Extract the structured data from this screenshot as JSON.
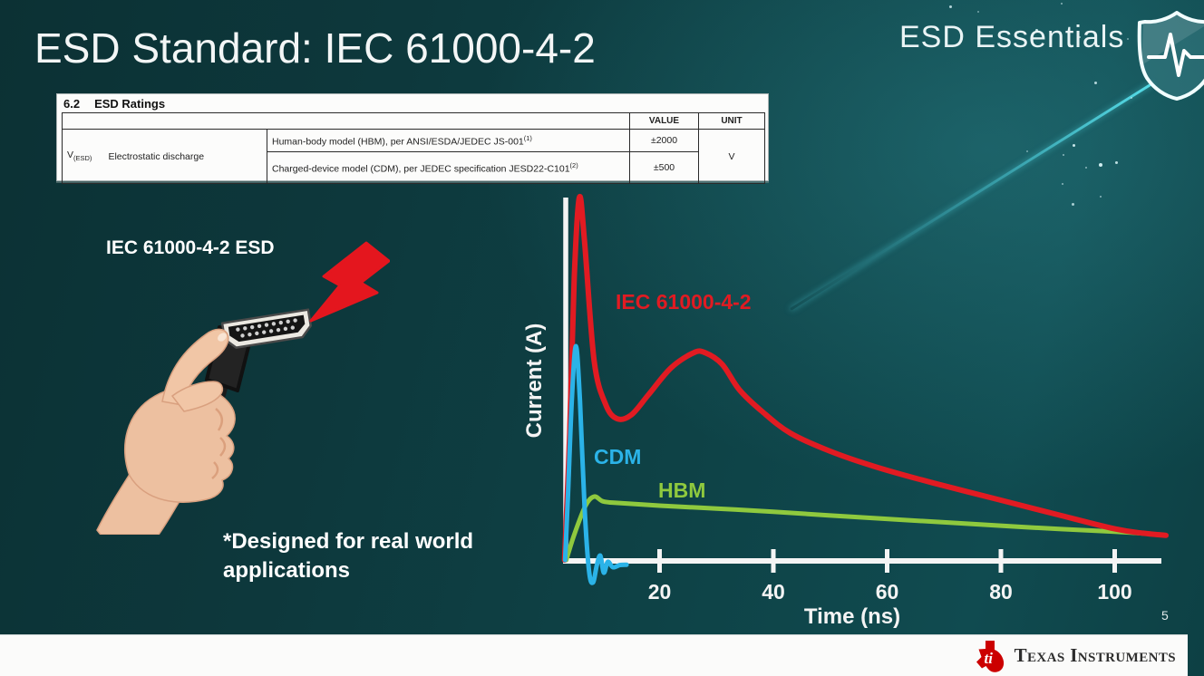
{
  "slide": {
    "title": "ESD Standard: IEC 61000-4-2",
    "brand": "ESD Essentials",
    "page_number": "5"
  },
  "ratings_table": {
    "section_number": "6.2",
    "section_title": "ESD Ratings",
    "headers": {
      "value": "VALUE",
      "unit": "UNIT"
    },
    "symbol": {
      "base": "V",
      "sub": "(ESD)"
    },
    "parameter": "Electrostatic discharge",
    "rows": [
      {
        "description": "Human-body model (HBM), per ANSI/ESDA/JEDEC JS-001",
        "footnote": "(1)",
        "value": "±2000"
      },
      {
        "description": "Charged-device model (CDM), per JEDEC specification JESD22-C101",
        "footnote": "(2)",
        "value": "±500"
      }
    ],
    "unit": "V"
  },
  "illustration": {
    "label": "IEC 61000-4-2 ESD",
    "note_line1": "*Designed for real world",
    "note_line2": "applications"
  },
  "footer": {
    "logo_text": "Texas Instruments"
  },
  "chart_data": {
    "type": "line",
    "title": "",
    "xlabel": "Time (ns)",
    "ylabel": "Current (A)",
    "x_ticks": [
      20,
      40,
      60,
      80,
      100
    ],
    "xlim": [
      0,
      110
    ],
    "ylim_normalized": [
      -0.08,
      1.05
    ],
    "grid": false,
    "legend": "inline-labels",
    "series": [
      {
        "name": "IEC 61000-4-2",
        "color": "#e11b22",
        "points": [
          [
            3.3,
            0
          ],
          [
            4.2,
            0.35
          ],
          [
            5,
            0.78
          ],
          [
            5.9,
            1.0
          ],
          [
            6.8,
            0.88
          ],
          [
            8.5,
            0.55
          ],
          [
            10.5,
            0.43
          ],
          [
            12.5,
            0.39
          ],
          [
            15,
            0.4
          ],
          [
            18,
            0.455
          ],
          [
            22,
            0.53
          ],
          [
            26,
            0.572
          ],
          [
            28,
            0.572
          ],
          [
            31,
            0.54
          ],
          [
            34,
            0.47
          ],
          [
            38,
            0.41
          ],
          [
            43,
            0.35
          ],
          [
            50,
            0.3
          ],
          [
            58,
            0.257
          ],
          [
            68,
            0.213
          ],
          [
            80,
            0.165
          ],
          [
            90,
            0.125
          ],
          [
            100,
            0.086
          ],
          [
            105,
            0.074
          ],
          [
            109,
            0.068
          ]
        ]
      },
      {
        "name": "CDM",
        "color": "#2bb3e8",
        "points": [
          [
            3.4,
            0
          ],
          [
            3.9,
            0.18
          ],
          [
            4.6,
            0.45
          ],
          [
            5.3,
            0.59
          ],
          [
            6.0,
            0.44
          ],
          [
            6.8,
            0.15
          ],
          [
            7.6,
            -0.03
          ],
          [
            8.3,
            -0.062
          ],
          [
            9.0,
            -0.012
          ],
          [
            9.6,
            0.012
          ],
          [
            10.2,
            -0.035
          ],
          [
            10.9,
            -0.005
          ],
          [
            11.8,
            -0.02
          ],
          [
            13.0,
            -0.014
          ],
          [
            14.2,
            -0.013
          ]
        ]
      },
      {
        "name": "HBM",
        "color": "#8fc93e",
        "points": [
          [
            3.6,
            0
          ],
          [
            5,
            0.07
          ],
          [
            7,
            0.15
          ],
          [
            8.5,
            0.175
          ],
          [
            10,
            0.162
          ],
          [
            12,
            0.158
          ],
          [
            20,
            0.15
          ],
          [
            30,
            0.142
          ],
          [
            40,
            0.133
          ],
          [
            55,
            0.118
          ],
          [
            70,
            0.104
          ],
          [
            85,
            0.09
          ],
          [
            100,
            0.078
          ],
          [
            108,
            0.07
          ]
        ]
      }
    ]
  }
}
